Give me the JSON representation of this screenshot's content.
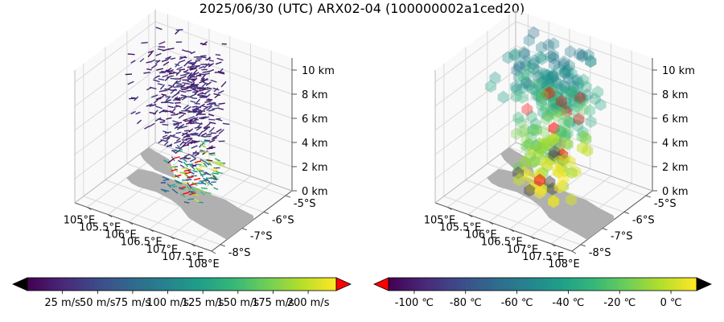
{
  "title": "2025/06/30 (UTC) ARX02-04 (100000002a1ced20)",
  "colors": {
    "axis": "#555555",
    "grid": "#d9d9d9",
    "land": "#b0b0b0",
    "over": "#ff0000",
    "under_wind": "#000000",
    "under_temp": "#ff0000",
    "over_temp": "#000000",
    "viridis": [
      "#440154",
      "#482878",
      "#3e4a89",
      "#31688e",
      "#26828e",
      "#1f9e89",
      "#35b779",
      "#6ece58",
      "#b5de2b",
      "#fde725"
    ]
  },
  "chart_data": [
    {
      "type": "scatter",
      "subtype": "3d-wind-barbs",
      "xlabel": "",
      "ylabel": "",
      "zlabel": "",
      "x_ticks": [
        "105°E",
        "105.5°E",
        "106°E",
        "106.5°E",
        "107°E",
        "107.5°E",
        "108°E"
      ],
      "y_ticks": [
        "-5°S",
        "-6°S",
        "-7°S",
        "-8°S"
      ],
      "z_ticks": [
        "0 km",
        "2 km",
        "4 km",
        "6 km",
        "8 km",
        "10 km"
      ],
      "xlim": [
        104.7,
        108.0
      ],
      "ylim": [
        -8.4,
        -4.7
      ],
      "zlim": [
        0,
        11
      ],
      "grid": true,
      "colorbar": {
        "orientation": "horizontal",
        "cmap": "viridis",
        "extend": "both",
        "range": [
          0,
          220
        ],
        "ticks": [
          "25 m/s",
          "50 m/s",
          "75 m/s",
          "100 m/s",
          "125 m/s",
          "150 m/s",
          "175 m/s",
          "200 m/s"
        ]
      }
    },
    {
      "type": "scatter",
      "subtype": "3d-voxels",
      "xlabel": "",
      "ylabel": "",
      "zlabel": "",
      "x_ticks": [
        "105°E",
        "105.5°E",
        "106°E",
        "106.5°E",
        "107°E",
        "107.5°E",
        "108°E"
      ],
      "y_ticks": [
        "-5°S",
        "-6°S",
        "-7°S",
        "-8°S"
      ],
      "z_ticks": [
        "0 km",
        "2 km",
        "4 km",
        "6 km",
        "8 km",
        "10 km"
      ],
      "xlim": [
        104.7,
        108.0
      ],
      "ylim": [
        -8.4,
        -4.7
      ],
      "zlim": [
        0,
        11
      ],
      "grid": true,
      "colorbar": {
        "orientation": "horizontal",
        "cmap": "viridis",
        "extend": "both",
        "range": [
          -110,
          10
        ],
        "ticks": [
          "-100 ℃",
          "-80 ℃",
          "-60 ℃",
          "-40 ℃",
          "-20 ℃",
          "0 ℃"
        ]
      }
    }
  ]
}
